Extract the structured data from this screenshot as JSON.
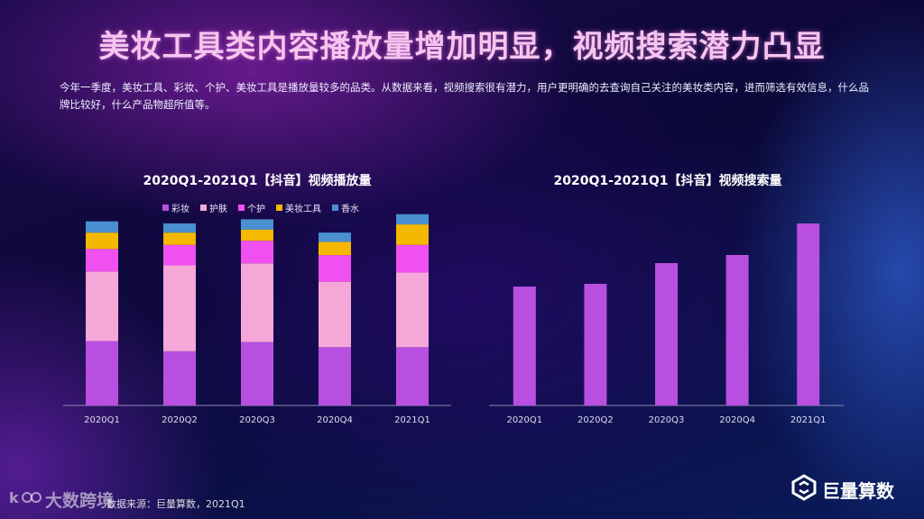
{
  "title": "美妆工具类内容播放量增加明显，视频搜索潜力凸显",
  "description": "今年一季度，美妆工具、彩妆、个护、美妆工具是播放量较多的品类。从数据来看，视频搜索很有潜力，用户更明确的去查询自己关注的美妆类内容，进而筛选有效信息，什么品牌比较好，什么产品物超所值等。",
  "source": "数据来源：巨量算数，2021Q1",
  "watermark": "大数跨境",
  "brand": "巨量算数",
  "colors": {
    "彩妆": "#b94fe0",
    "护肤": "#f5a8d8",
    "个护": "#f050f0",
    "美妆工具": "#f5b800",
    "香水": "#4a90d0",
    "search": "#b94fe0"
  },
  "chart_data": [
    {
      "type": "bar",
      "stacked": true,
      "title": "2020Q1-2021Q1【抖音】视频播放量",
      "categories": [
        "2020Q1",
        "2020Q2",
        "2020Q3",
        "2020Q4",
        "2021Q1"
      ],
      "series": [
        {
          "name": "彩妆",
          "values": [
            63,
            53,
            62,
            57,
            57
          ]
        },
        {
          "name": "护肤",
          "values": [
            68,
            84,
            77,
            64,
            73
          ]
        },
        {
          "name": "个护",
          "values": [
            22,
            20,
            22,
            26,
            27
          ]
        },
        {
          "name": "美妆工具",
          "values": [
            16,
            12,
            11,
            13,
            20
          ]
        },
        {
          "name": "香水",
          "values": [
            11,
            9,
            10,
            9,
            10
          ]
        }
      ],
      "ylim": [
        0,
        185
      ],
      "legend": "top"
    },
    {
      "type": "bar",
      "title": "2020Q1-2021Q1【抖音】视频搜索量",
      "categories": [
        "2020Q1",
        "2020Q2",
        "2020Q3",
        "2020Q4",
        "2021Q1"
      ],
      "values": [
        132,
        135,
        158,
        167,
        202
      ],
      "ylim": [
        0,
        210
      ]
    }
  ]
}
